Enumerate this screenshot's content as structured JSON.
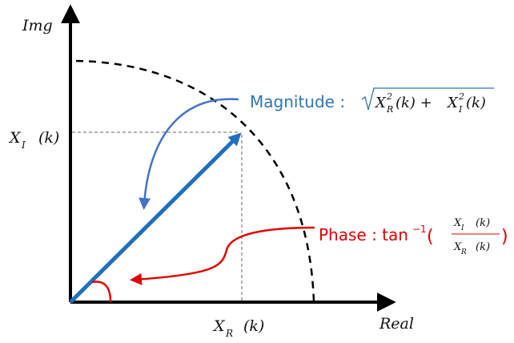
{
  "axes": {
    "y_label": "Img",
    "x_label": "Real",
    "x_tick_main": "X",
    "x_tick_sub": "R",
    "x_tick_arg": "(k)",
    "y_tick_main": "X",
    "y_tick_sub": "I",
    "y_tick_arg": "(k)"
  },
  "magnitude": {
    "label": "Magnitude :",
    "formula_x1": "X",
    "formula_sub1": "R",
    "formula_sup1": "2",
    "formula_arg1": "(k) + ",
    "formula_x2": "X",
    "formula_sub2": "I",
    "formula_sup2": "2",
    "formula_arg2": "(k)",
    "color": "#2e75b6"
  },
  "phase": {
    "label": "Phase : tan",
    "exponent": "−1",
    "paren_open": "(",
    "paren_close": ")",
    "num_x": "X",
    "num_sub": "I",
    "num_arg": "(k)",
    "den_x": "X",
    "den_sub": "R",
    "den_arg": "(k)",
    "color": "#e00000"
  },
  "colors": {
    "vector": "#1f6fbf",
    "axis": "#000000",
    "guide": "#666666",
    "circle": "#000000"
  }
}
